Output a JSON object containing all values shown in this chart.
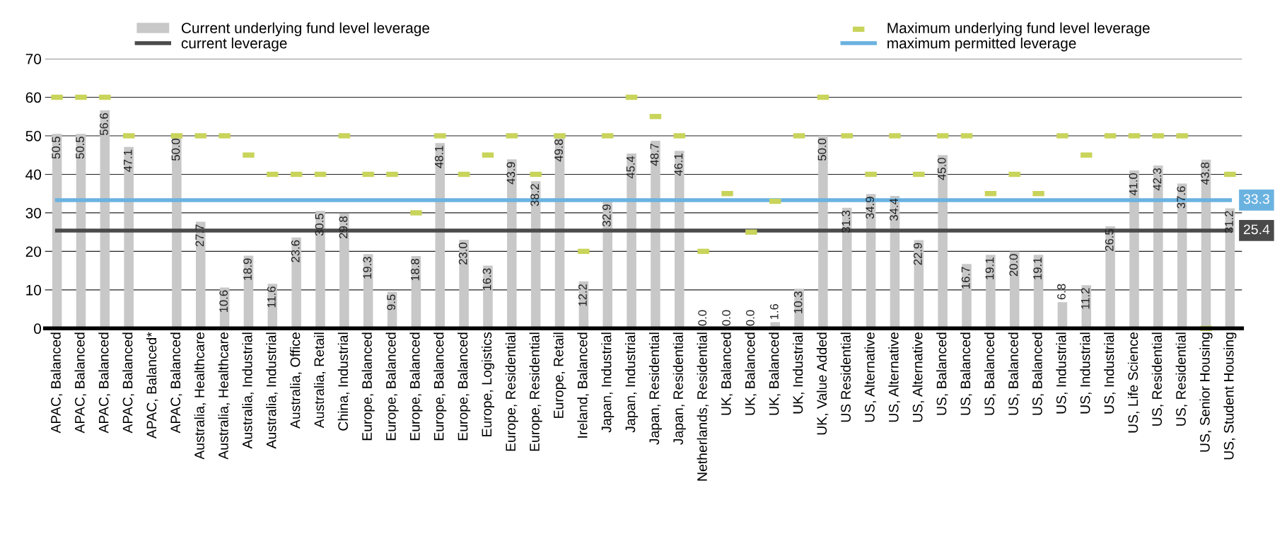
{
  "chart_data": {
    "type": "bar",
    "categories": [
      "APAC, Balanced",
      "APAC, Balanced",
      "APAC, Balanced",
      "APAC, Balanced",
      "APAC, Balanced*",
      "APAC, Balanced",
      "Australia, Healthcare",
      "Australia, Healthcare",
      "Australia, Industrial",
      "Australia, Industrial",
      "Australia, Office",
      "Australia, Retail",
      "China, Industrial",
      "Europe, Balanced",
      "Europe, Balanced",
      "Europe, Balanced",
      "Europe, Balanced",
      "Europe, Balanced",
      "Europe, Logistics",
      "Europe, Residential",
      "Europe, Residential",
      "Europe, Retail",
      "Ireland, Balanced",
      "Japan, Industrial",
      "Japan, Industrial",
      "Japan, Residential",
      "Japan, Residential",
      "Netherlands, Residential",
      "UK, Balanced",
      "UK, Balanced",
      "UK, Balanced",
      "UK, Industrial",
      "UK, Value Added",
      "US Residential",
      "US, Alternative",
      "US, Alternative",
      "US, Alternative",
      "US, Balanced",
      "US, Balanced",
      "US, Balanced",
      "US, Balanced",
      "US, Balanced",
      "US, Industrial",
      "US, Industrial",
      "US, Industrial",
      "US, Life Science",
      "US, Residential",
      "US, Residential",
      "US, Senior Housing",
      "US, Student Housing"
    ],
    "series": [
      {
        "type": "bar",
        "name": "Current underlying fund level leverage",
        "color": "#c8c8c8",
        "values": [
          50.5,
          50.5,
          56.6,
          47.1,
          null,
          50.0,
          27.7,
          10.6,
          18.9,
          11.6,
          23.6,
          30.5,
          29.8,
          19.3,
          9.5,
          18.8,
          48.1,
          23.0,
          16.3,
          43.9,
          38.2,
          49.8,
          12.2,
          32.9,
          45.4,
          48.7,
          46.1,
          0.0,
          0.0,
          0.0,
          1.6,
          10.3,
          50.0,
          31.3,
          34.9,
          34.4,
          22.9,
          45.0,
          16.7,
          19.1,
          20.0,
          19.1,
          6.8,
          11.2,
          26.5,
          41.0,
          42.3,
          37.6,
          43.8,
          31.2
        ],
        "value_labels": [
          "50.5",
          "50.5",
          "56.6",
          "47.1",
          null,
          "50.0",
          "27.7",
          "10.6",
          "18.9",
          "11.6",
          "23.6",
          "30.5",
          "29.8",
          "19.3",
          "9.5",
          "18.8",
          "48.1",
          "23.0",
          "16.3",
          "43.9",
          "38.2",
          "49.8",
          "12.2",
          "32.9",
          "45.4",
          "48.7",
          "46.1",
          "0.0",
          "0.0",
          "0.0",
          "1.6",
          "10.3",
          "50.0",
          "31.3",
          "34.9",
          "34.4",
          "22.9",
          "45.0",
          "16.7",
          "19.1",
          "20.0",
          "19.1",
          "6.8",
          "11.2",
          "26.5",
          "41.0",
          "42.3",
          "37.6",
          "43.8",
          "31.2"
        ]
      },
      {
        "type": "line",
        "name": "current leverage",
        "color": "#4a4a4a",
        "values": [
          25.4,
          25.4,
          25.4,
          25.4,
          25.4,
          25.4,
          25.4,
          25.4,
          25.4,
          25.4,
          25.4,
          25.4,
          25.4,
          25.4,
          25.4,
          25.4,
          25.4,
          25.4,
          25.4,
          25.4,
          25.4,
          25.4,
          25.4,
          25.4,
          25.4,
          25.4,
          25.4,
          25.4,
          25.4,
          25.4,
          25.4,
          25.4,
          25.4,
          25.4,
          25.4,
          25.4,
          25.4,
          25.4,
          25.4,
          25.4,
          25.4,
          25.4,
          25.4,
          25.4,
          25.4,
          25.4,
          25.4,
          25.4,
          25.4,
          25.4
        ],
        "value_labels": [
          null,
          null,
          null,
          null,
          null,
          null,
          null,
          null,
          null,
          null,
          null,
          null,
          null,
          null,
          null,
          null,
          null,
          null,
          null,
          null,
          null,
          null,
          null,
          null,
          null,
          null,
          null,
          null,
          null,
          null,
          null,
          null,
          null,
          null,
          null,
          null,
          null,
          null,
          null,
          null,
          null,
          null,
          null,
          null,
          null,
          null,
          null,
          null,
          null,
          "25.4"
        ]
      },
      {
        "type": "scatter",
        "name": "Maximum underlying fund level leverage",
        "color": "#c8d45a",
        "marker": "square",
        "values": [
          60,
          60,
          60,
          50,
          null,
          50,
          50,
          50,
          45,
          40,
          40,
          40,
          50,
          40,
          40,
          30,
          50,
          40,
          45,
          50,
          40,
          50,
          20,
          50,
          60,
          55,
          50,
          20,
          35,
          25,
          33,
          50,
          60,
          50,
          40,
          50,
          40,
          50,
          50,
          35,
          40,
          35,
          50,
          45,
          50,
          50,
          50,
          50,
          0,
          40
        ]
      },
      {
        "type": "line",
        "name": "maximum permitted leverage",
        "color": "#6ab2e0",
        "values": [
          33.3,
          33.3,
          33.3,
          33.3,
          33.3,
          33.3,
          33.3,
          33.3,
          33.3,
          33.3,
          33.3,
          33.3,
          33.3,
          33.3,
          33.3,
          33.3,
          33.3,
          33.3,
          33.3,
          33.3,
          33.3,
          33.3,
          33.3,
          33.3,
          33.3,
          33.3,
          33.3,
          33.3,
          33.3,
          33.3,
          33.3,
          33.3,
          33.3,
          33.3,
          33.3,
          33.3,
          33.3,
          33.3,
          33.3,
          33.3,
          33.3,
          33.3,
          33.3,
          33.3,
          33.3,
          33.3,
          33.3,
          33.3,
          33.3,
          33.3
        ],
        "value_labels": [
          null,
          null,
          null,
          null,
          null,
          null,
          null,
          null,
          null,
          null,
          null,
          null,
          null,
          null,
          null,
          null,
          null,
          null,
          null,
          null,
          null,
          null,
          null,
          null,
          null,
          null,
          null,
          null,
          null,
          null,
          null,
          null,
          null,
          null,
          null,
          null,
          null,
          null,
          null,
          null,
          null,
          null,
          null,
          null,
          null,
          null,
          null,
          null,
          null,
          "33.3"
        ]
      }
    ],
    "ylim": [
      0,
      70
    ],
    "yticks": [
      0,
      10,
      20,
      30,
      40,
      50,
      60,
      70
    ],
    "grid": "y",
    "legend": "top"
  }
}
